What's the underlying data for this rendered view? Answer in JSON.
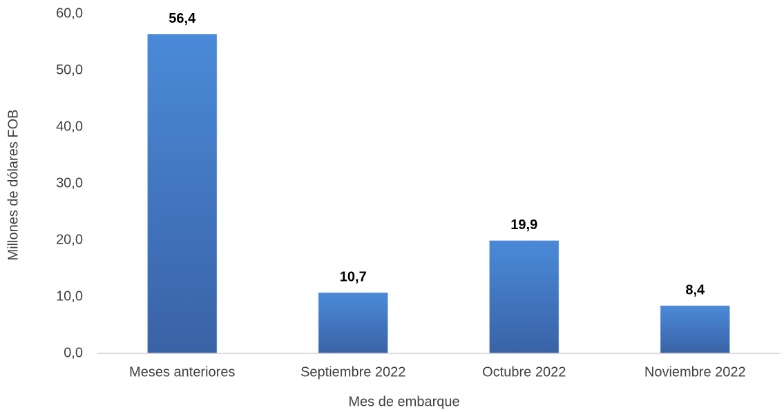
{
  "chart_data": {
    "type": "bar",
    "x_label": "Mes de embarque",
    "y_label": "Millones de dólares FOB",
    "categories": [
      "Meses anteriores",
      "Septiembre 2022",
      "Octubre 2022",
      "Noviembre 2022"
    ],
    "values": [
      56.4,
      10.7,
      19.9,
      8.4
    ],
    "value_labels": [
      "56,4",
      "10,7",
      "19,9",
      "8,4"
    ],
    "color": "#4a8ad8",
    "ylim": [
      0,
      60
    ],
    "yticks": [
      {
        "value": 0,
        "label": "0,0"
      },
      {
        "value": 10,
        "label": "10,0"
      },
      {
        "value": 20,
        "label": "20,0"
      },
      {
        "value": 30,
        "label": "30,0"
      },
      {
        "value": 40,
        "label": "40,0"
      },
      {
        "value": 50,
        "label": "50,0"
      },
      {
        "value": 60,
        "label": "60,0"
      }
    ],
    "grid": false
  }
}
